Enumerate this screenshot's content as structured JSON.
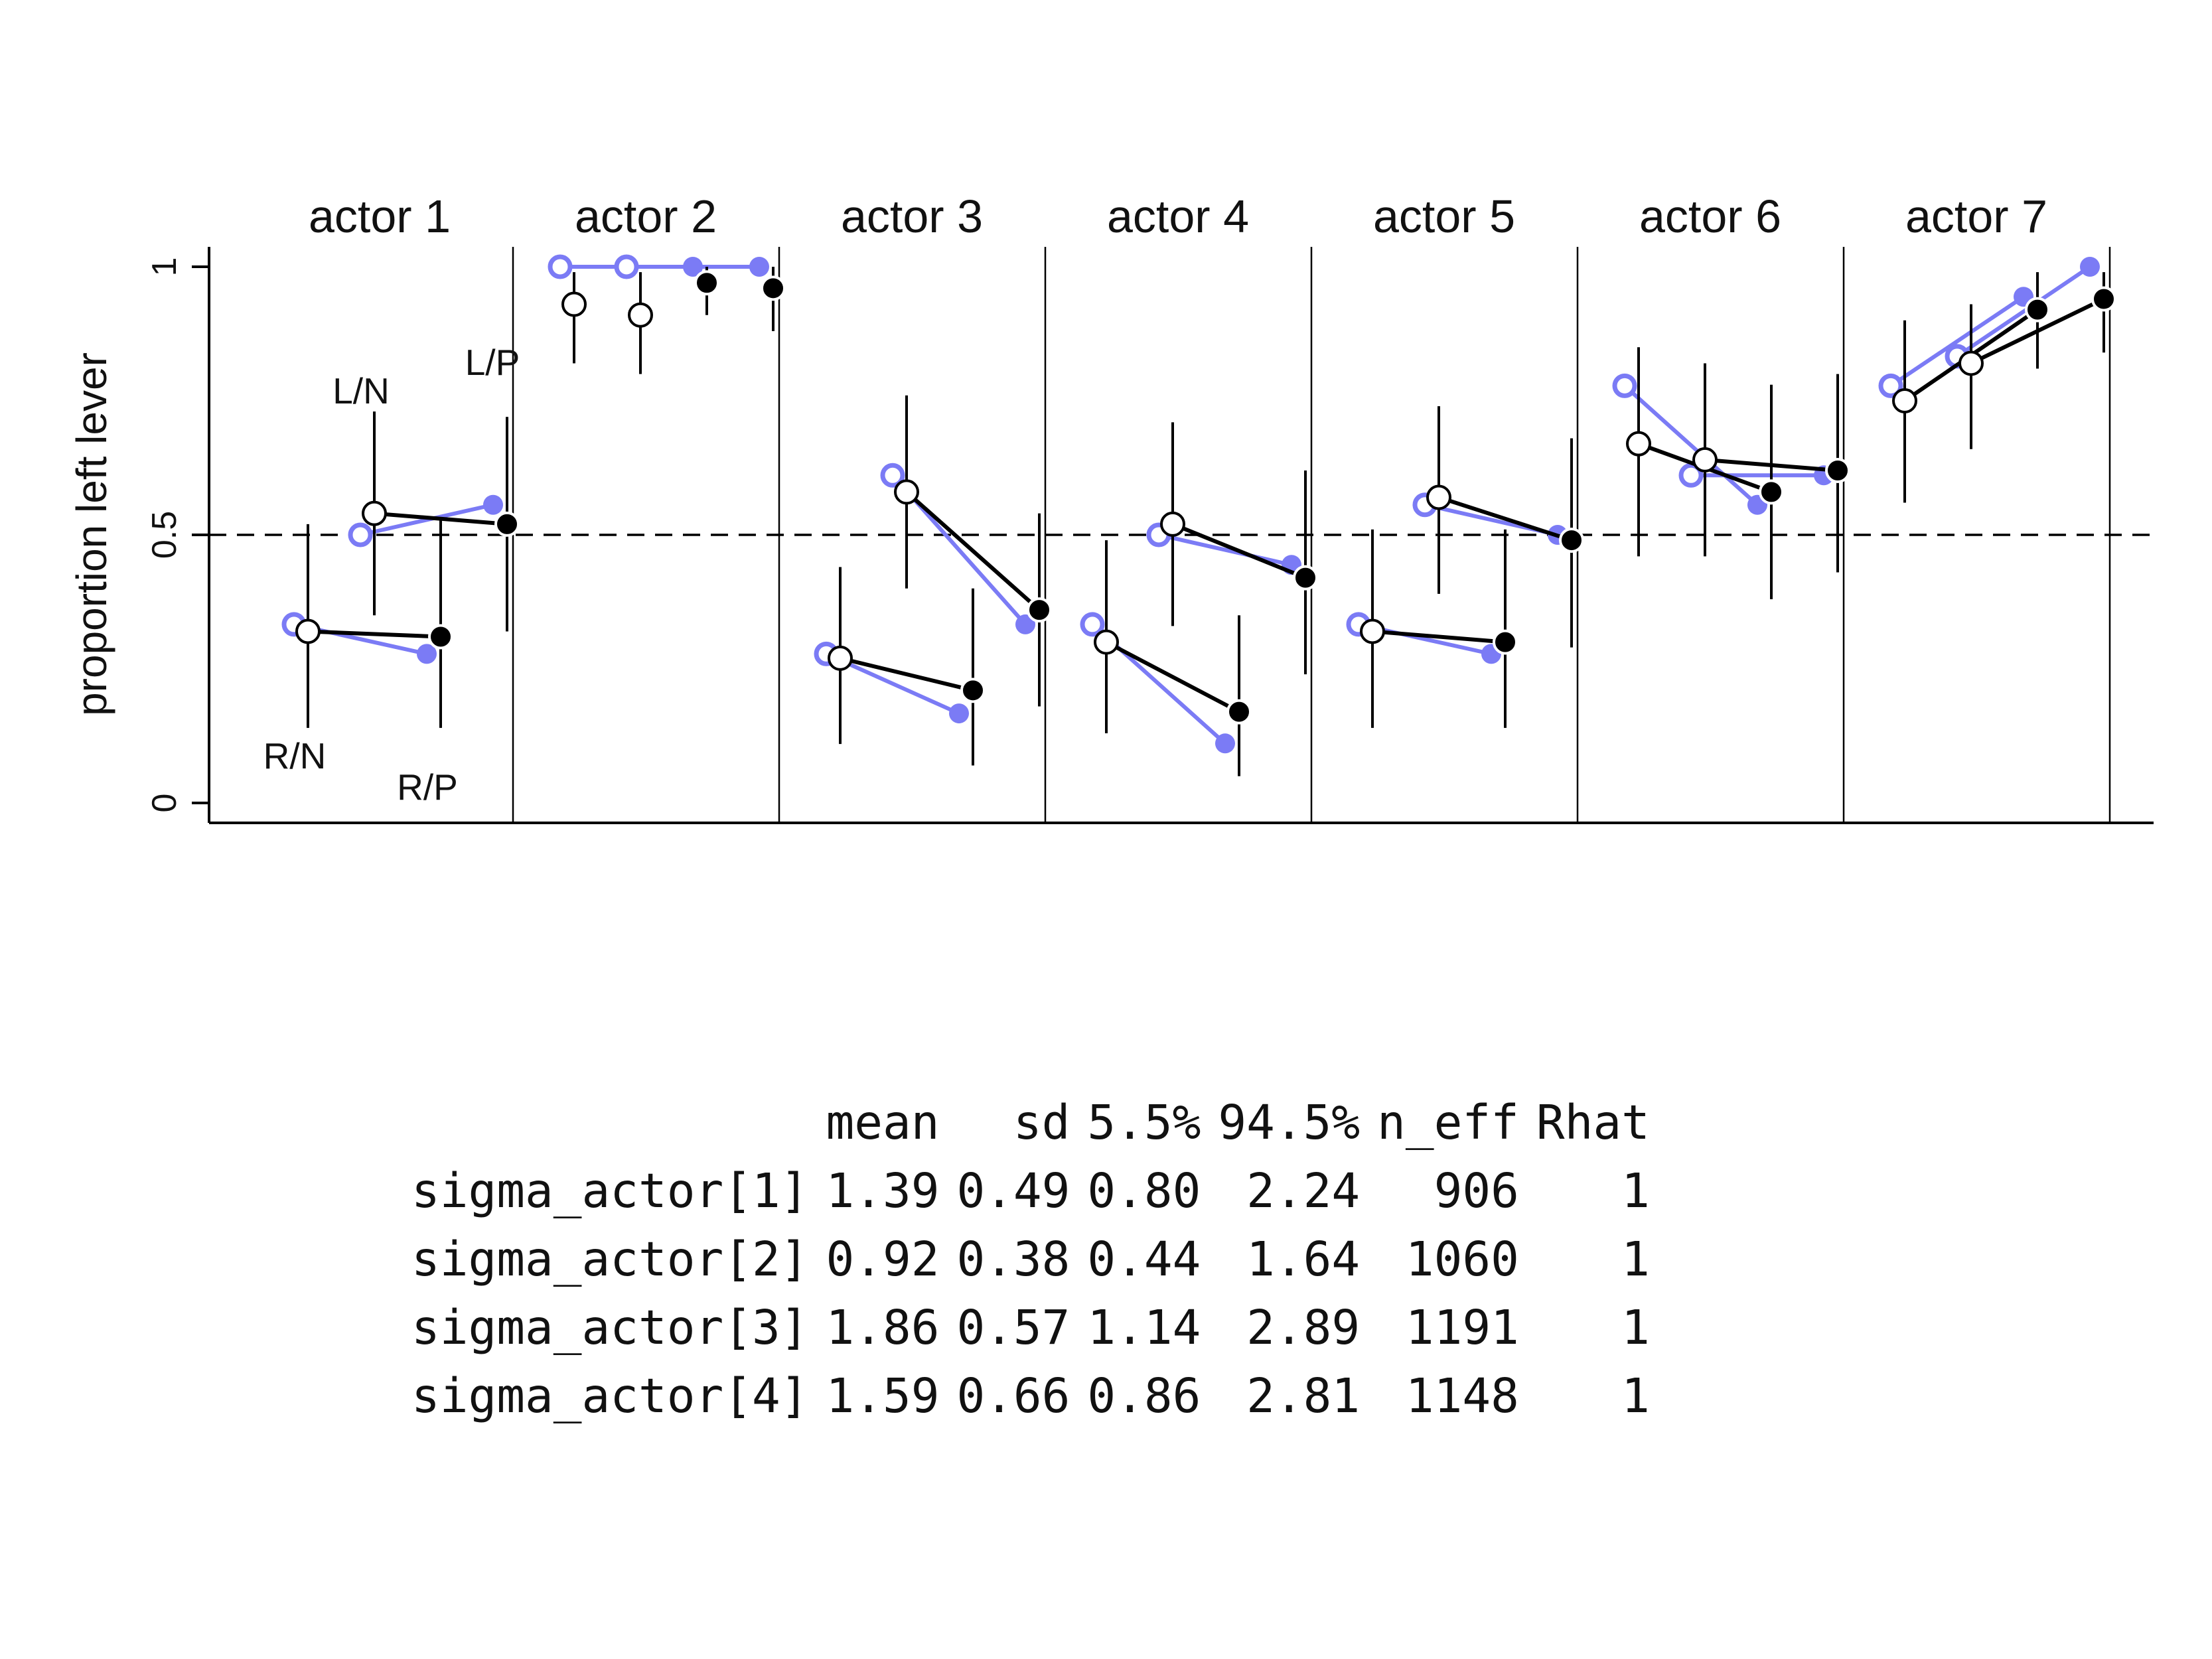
{
  "chart_data": {
    "type": "scatter",
    "ylabel": "proportion left lever",
    "ylim": [
      0,
      1
    ],
    "yticks": [
      0,
      0.5,
      1
    ],
    "ytick_labels": [
      "0",
      "0.5",
      "1"
    ],
    "reference_line": 0.5,
    "treatments": [
      "R/N",
      "L/N",
      "R/P",
      "L/P"
    ],
    "treatment_labels_panel": "actor 1",
    "colors": {
      "observed": "#7b7bf5",
      "posterior": "#000000",
      "interval": "#000000",
      "panel_border": "#000000"
    },
    "panels": [
      {
        "title": "actor 1",
        "observed": [
          0.333,
          0.5,
          0.278,
          0.556
        ],
        "posterior": [
          0.32,
          0.54,
          0.31,
          0.52
        ],
        "lower": [
          0.14,
          0.35,
          0.14,
          0.32
        ],
        "upper": [
          0.52,
          0.73,
          0.53,
          0.72
        ]
      },
      {
        "title": "actor 2",
        "observed": [
          1.0,
          1.0,
          1.0,
          1.0
        ],
        "posterior": [
          0.93,
          0.91,
          0.97,
          0.96
        ],
        "lower": [
          0.82,
          0.8,
          0.91,
          0.88
        ],
        "upper": [
          0.99,
          0.99,
          1.0,
          1.0
        ]
      },
      {
        "title": "actor 3",
        "observed": [
          0.278,
          0.611,
          0.167,
          0.333
        ],
        "posterior": [
          0.27,
          0.58,
          0.21,
          0.36
        ],
        "lower": [
          0.11,
          0.4,
          0.07,
          0.18
        ],
        "upper": [
          0.44,
          0.76,
          0.4,
          0.54
        ]
      },
      {
        "title": "actor 4",
        "observed": [
          0.333,
          0.5,
          0.111,
          0.444
        ],
        "posterior": [
          0.3,
          0.52,
          0.17,
          0.42
        ],
        "lower": [
          0.13,
          0.33,
          0.05,
          0.24
        ],
        "upper": [
          0.49,
          0.71,
          0.35,
          0.62
        ]
      },
      {
        "title": "actor 5",
        "observed": [
          0.333,
          0.556,
          0.278,
          0.5
        ],
        "posterior": [
          0.32,
          0.57,
          0.3,
          0.49
        ],
        "lower": [
          0.14,
          0.39,
          0.14,
          0.29
        ],
        "upper": [
          0.51,
          0.74,
          0.51,
          0.68
        ]
      },
      {
        "title": "actor 6",
        "observed": [
          0.778,
          0.611,
          0.556,
          0.611
        ],
        "posterior": [
          0.67,
          0.64,
          0.58,
          0.62
        ],
        "lower": [
          0.46,
          0.46,
          0.38,
          0.43
        ],
        "upper": [
          0.85,
          0.82,
          0.78,
          0.8
        ]
      },
      {
        "title": "actor 7",
        "observed": [
          0.778,
          0.833,
          0.944,
          1.0
        ],
        "posterior": [
          0.75,
          0.82,
          0.92,
          0.94
        ],
        "lower": [
          0.56,
          0.66,
          0.81,
          0.84
        ],
        "upper": [
          0.9,
          0.93,
          0.99,
          0.99
        ]
      }
    ]
  },
  "summary_table": {
    "columns": [
      "",
      "mean",
      "sd",
      "5.5%",
      "94.5%",
      "n_eff",
      "Rhat"
    ],
    "rows": [
      [
        "sigma_actor[1]",
        "1.39",
        "0.49",
        "0.80",
        "2.24",
        "906",
        "1"
      ],
      [
        "sigma_actor[2]",
        "0.92",
        "0.38",
        "0.44",
        "1.64",
        "1060",
        "1"
      ],
      [
        "sigma_actor[3]",
        "1.86",
        "0.57",
        "1.14",
        "2.89",
        "1191",
        "1"
      ],
      [
        "sigma_actor[4]",
        "1.59",
        "0.66",
        "0.86",
        "2.81",
        "1148",
        "1"
      ]
    ]
  }
}
